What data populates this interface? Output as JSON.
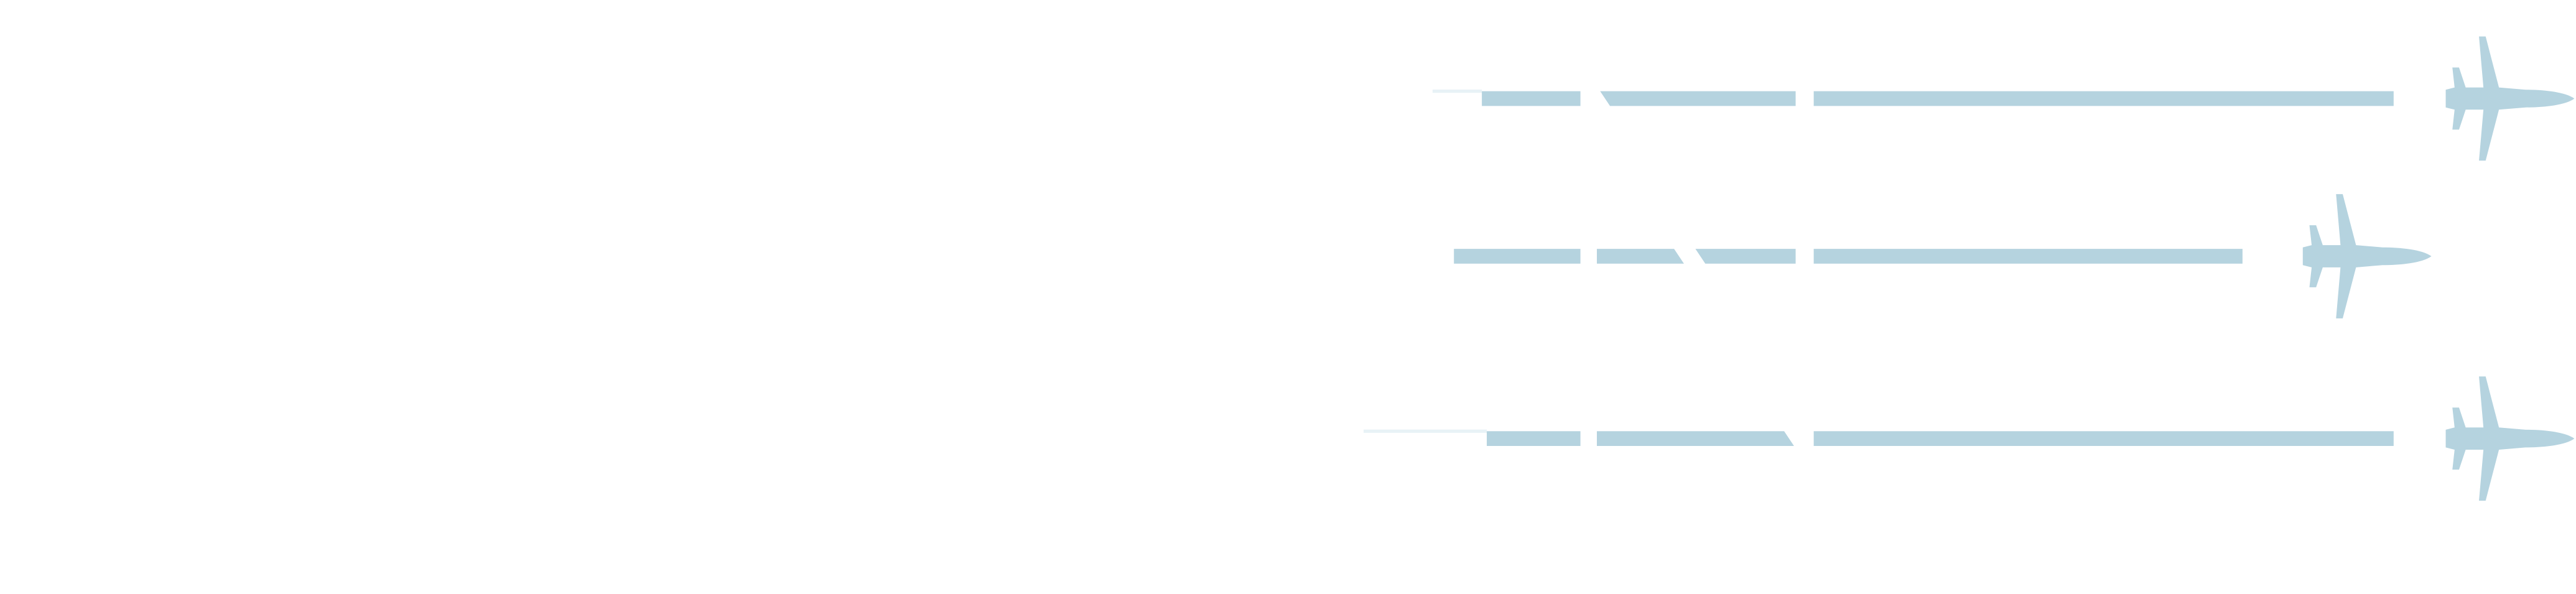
{
  "graphic": {
    "background_color": "#ffffff",
    "accent_color": "#b5d3df",
    "faint_trail_color": "#e8f2f6",
    "icon": "airplane-icon",
    "lanes": [
      {
        "name": "top-plane-lane",
        "trail_level": 1.0
      },
      {
        "name": "middle-plane-lane",
        "trail_level": 0.89
      },
      {
        "name": "bottom-plane-lane",
        "trail_level": 1.0
      }
    ]
  }
}
